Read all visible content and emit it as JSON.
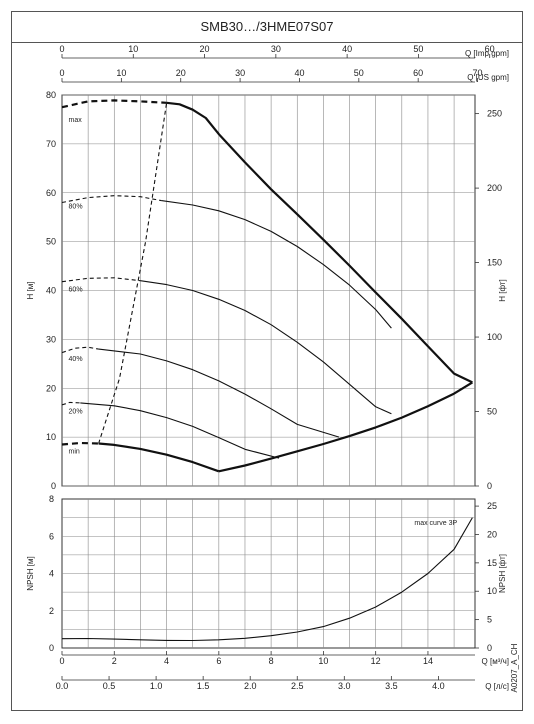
{
  "title": "SMB30…/3HME07S07",
  "footer_code": "A0207_A_CH",
  "chart_data": [
    {
      "type": "line",
      "name": "head",
      "ylabel_left": "H [м]",
      "ylabel_right": "H [фт]",
      "ylim": [
        0,
        80
      ],
      "ylim_right": [
        0,
        262.5
      ],
      "left_ticks": [
        0,
        10,
        20,
        30,
        40,
        50,
        60,
        70,
        80
      ],
      "right_ticks": [
        0,
        50,
        100,
        150,
        200,
        250
      ],
      "xlim": [
        0,
        15.8
      ],
      "top_axes": [
        {
          "label": "Q [Imp gpm]",
          "ticks": [
            0,
            10,
            20,
            30,
            40,
            50,
            60
          ]
        },
        {
          "label": "Q [US gpm]",
          "ticks": [
            0,
            10,
            20,
            30,
            40,
            50,
            60,
            70
          ]
        }
      ],
      "curve_labels": [
        "max",
        "80%",
        "60%",
        "40%",
        "20%",
        "min"
      ],
      "series": [
        {
          "name": "max",
          "style": "solid-bold",
          "x": [
            4.0,
            4.5,
            5.0,
            5.5,
            6.0,
            7.0,
            8.0,
            9.0,
            10.0,
            11.0,
            12.0,
            13.0,
            14.0,
            15.0,
            15.7
          ],
          "y": [
            78.4,
            78.1,
            77.0,
            75.3,
            72.0,
            66.2,
            60.7,
            55.6,
            50.4,
            45.1,
            39.6,
            34.2,
            28.6,
            23.0,
            21.2
          ]
        },
        {
          "name": "max-dashed",
          "style": "dashed-bold",
          "x": [
            0,
            1,
            2,
            3,
            4
          ],
          "y": [
            77.5,
            78.7,
            78.9,
            78.7,
            78.4
          ]
        },
        {
          "name": "80%",
          "style": "solid",
          "x": [
            3.8,
            5,
            6,
            7,
            8,
            9,
            10,
            11,
            12,
            12.6
          ],
          "y": [
            58.4,
            57.5,
            56.3,
            54.5,
            52.1,
            49.0,
            45.3,
            41.1,
            36.1,
            32.3
          ]
        },
        {
          "name": "80%-dashed",
          "style": "dashed",
          "x": [
            0,
            1,
            2,
            3,
            3.8
          ],
          "y": [
            58.0,
            59.0,
            59.4,
            59.2,
            58.4
          ]
        },
        {
          "name": "60%",
          "style": "solid",
          "x": [
            3.0,
            4,
            5,
            6,
            7,
            8,
            9,
            10,
            11,
            12,
            12.6
          ],
          "y": [
            42.0,
            41.2,
            40.0,
            38.2,
            35.9,
            33.0,
            29.4,
            25.4,
            20.8,
            16.2,
            14.8
          ]
        },
        {
          "name": "60%-dashed",
          "style": "dashed",
          "x": [
            0,
            1,
            2,
            3
          ],
          "y": [
            41.8,
            42.5,
            42.6,
            42.0
          ]
        },
        {
          "name": "40%",
          "style": "solid",
          "x": [
            1.4,
            3,
            4,
            5,
            6,
            7,
            8,
            9,
            10.6
          ],
          "y": [
            28.0,
            27.0,
            25.6,
            23.8,
            21.5,
            18.8,
            15.8,
            12.6,
            10.0
          ]
        },
        {
          "name": "40%-dashed",
          "style": "dashed",
          "x": [
            0,
            0.5,
            1,
            1.4
          ],
          "y": [
            27.3,
            28.2,
            28.4,
            28.0
          ]
        },
        {
          "name": "20%",
          "style": "solid",
          "x": [
            0.7,
            2,
            3,
            4,
            5,
            6,
            7,
            8.3
          ],
          "y": [
            17.0,
            16.4,
            15.4,
            14.0,
            12.2,
            9.9,
            7.5,
            5.7
          ]
        },
        {
          "name": "20%-dashed",
          "style": "dashed",
          "x": [
            0,
            0.3,
            0.7
          ],
          "y": [
            16.6,
            17.1,
            17.0
          ]
        },
        {
          "name": "min",
          "style": "solid-bold",
          "x": [
            1.4,
            2,
            3,
            4,
            5,
            6.0
          ],
          "y": [
            8.7,
            8.4,
            7.6,
            6.4,
            4.9,
            3.0
          ]
        },
        {
          "name": "min-dashed",
          "style": "dashed-bold",
          "x": [
            0,
            0.7,
            1.4
          ],
          "y": [
            8.5,
            8.8,
            8.7
          ]
        },
        {
          "name": "system-lower",
          "style": "solid-bold",
          "x": [
            6.0,
            7,
            8,
            9,
            10,
            11,
            12,
            13,
            14,
            15,
            15.7
          ],
          "y": [
            3.0,
            4.2,
            5.6,
            7.1,
            8.6,
            10.2,
            12.0,
            14.0,
            16.3,
            18.9,
            21.2
          ]
        },
        {
          "name": "min-flow-limit",
          "style": "dashed",
          "x": [
            1.4,
            2.2,
            3.2,
            4.0
          ],
          "y": [
            8.7,
            22.0,
            50.0,
            78.4
          ]
        }
      ]
    },
    {
      "type": "line",
      "name": "npsh",
      "ylabel_left": "NPSH [м]",
      "ylabel_right": "NPSH [фт]",
      "ylim": [
        0,
        8
      ],
      "ylim_right": [
        0,
        26.25
      ],
      "left_ticks": [
        0,
        2,
        4,
        6,
        8
      ],
      "right_ticks": [
        0,
        5,
        10,
        15,
        20,
        25
      ],
      "xlim": [
        0,
        15.8
      ],
      "bottom_axes": [
        {
          "label": "Q [м³/ч]",
          "ticks": [
            0,
            2,
            4,
            6,
            8,
            10,
            12,
            14
          ]
        },
        {
          "label": "Q [л/с]",
          "ticks": [
            0.0,
            0.5,
            1.0,
            1.5,
            2.0,
            2.5,
            3.0,
            3.5,
            4.0
          ]
        }
      ],
      "annotation": "max curve 3P",
      "series": [
        {
          "name": "max curve 3P",
          "x": [
            0,
            1,
            2,
            3,
            4,
            5,
            6,
            7,
            8,
            9,
            10,
            11,
            12,
            13,
            14,
            15,
            15.7
          ],
          "y": [
            0.5,
            0.51,
            0.48,
            0.44,
            0.41,
            0.4,
            0.44,
            0.52,
            0.66,
            0.86,
            1.15,
            1.6,
            2.2,
            3.0,
            4.0,
            5.3,
            7.0
          ]
        }
      ]
    }
  ]
}
